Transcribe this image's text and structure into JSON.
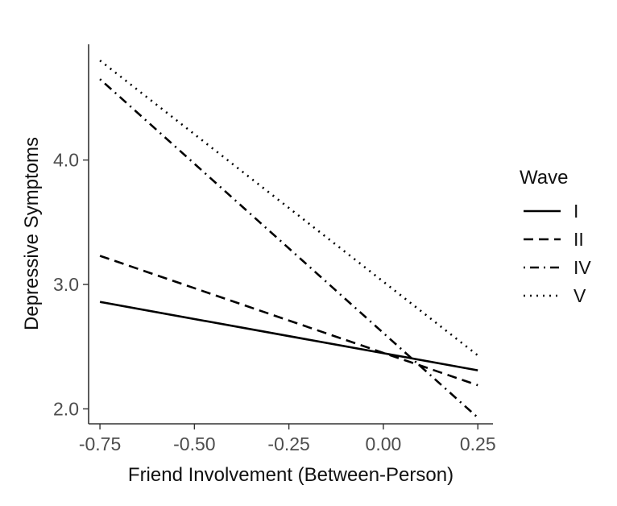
{
  "chart_data": {
    "type": "line",
    "xlabel": "Friend Involvement (Between-Person)",
    "ylabel": "Depressive Symptoms",
    "xlim": [
      -0.78,
      0.29
    ],
    "ylim": [
      1.88,
      4.93
    ],
    "x_ticks": [
      -0.75,
      -0.5,
      -0.25,
      0.0,
      0.25
    ],
    "x_tick_labels": [
      "-0.75",
      "-0.50",
      "-0.25",
      "0.00",
      "0.25"
    ],
    "y_ticks": [
      2.0,
      3.0,
      4.0
    ],
    "y_tick_labels": [
      "2.0",
      "3.0",
      "4.0"
    ],
    "grid": false,
    "legend_title": "Wave",
    "legend_placement": "right",
    "series": [
      {
        "name": "I",
        "linetype": "solid",
        "x": [
          -0.75,
          0.25
        ],
        "y": [
          2.86,
          2.31
        ]
      },
      {
        "name": "II",
        "linetype": "dashed",
        "x": [
          -0.75,
          0.25
        ],
        "y": [
          3.23,
          2.19
        ]
      },
      {
        "name": "IV",
        "linetype": "dotdash",
        "x": [
          -0.75,
          0.25
        ],
        "y": [
          4.65,
          1.93
        ]
      },
      {
        "name": "V",
        "linetype": "dotted",
        "x": [
          -0.75,
          0.25
        ],
        "y": [
          4.8,
          2.43
        ]
      }
    ]
  }
}
